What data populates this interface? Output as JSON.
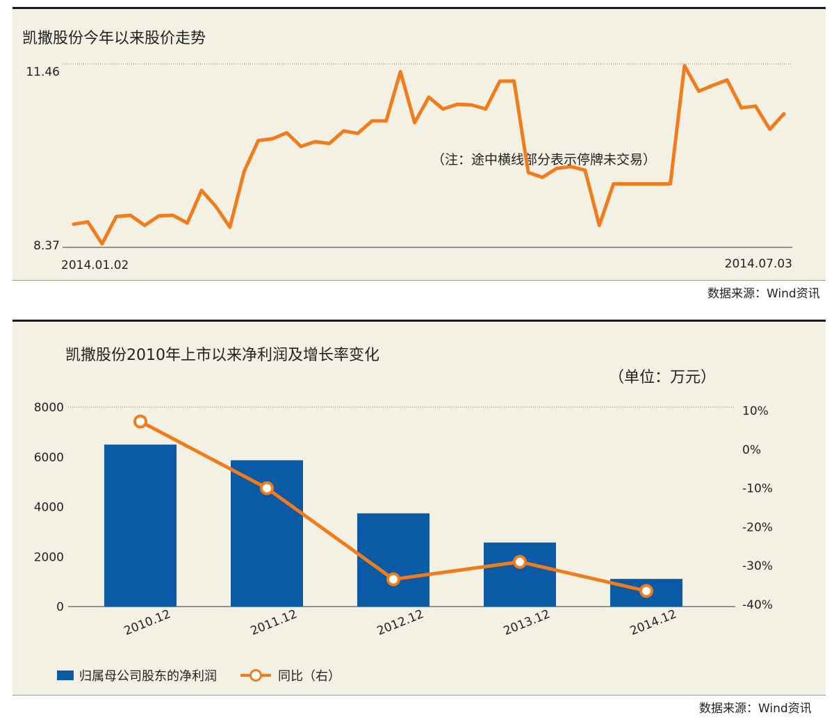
{
  "colors": {
    "orange": "#f07c1b",
    "blue": "#0a5aa5",
    "panel_bg": "#f3f0e4"
  },
  "panel1": {
    "title": "凯撒股份今年以来股价走势",
    "note": "（注：途中横线部分表示停牌未交易）",
    "source": "数据来源：Wind资讯"
  },
  "panel2": {
    "title": "凯撒股份2010年上市以来净利润及增长率变化",
    "unit": "（单位：万元）",
    "source": "数据来源：Wind资讯",
    "legend_bar": "归属母公司股东的净利润",
    "legend_line": "同比（右）"
  },
  "chart_data": [
    {
      "type": "line",
      "title": "凯撒股份今年以来股价走势",
      "ylim": [
        8.37,
        11.46
      ],
      "y_tick_labels": [
        "11.46",
        "8.37"
      ],
      "x_tick_labels": [
        "2014.01.02",
        "2014.07.03"
      ],
      "series": [
        {
          "values": [
            8.76,
            8.8,
            8.43,
            8.89,
            8.91,
            8.74,
            8.9,
            8.91,
            8.78,
            9.33,
            9.06,
            8.71,
            9.65,
            10.17,
            10.2,
            10.3,
            10.07,
            10.15,
            10.12,
            10.33,
            10.29,
            10.5,
            10.5,
            11.33,
            10.47,
            10.9,
            10.7,
            10.78,
            10.77,
            10.7,
            11.17,
            11.17,
            9.63,
            9.55,
            9.7,
            9.73,
            9.67,
            8.74,
            9.44,
            9.44,
            9.44,
            9.44,
            9.44,
            11.43,
            11.0,
            11.1,
            11.19,
            10.72,
            10.75,
            10.36,
            10.62
          ]
        }
      ]
    },
    {
      "type": "bar",
      "title": "凯撒股份2010年上市以来净利润及增长率变化",
      "categories": [
        "2010.12",
        "2011.12",
        "2012.12",
        "2013.12",
        "2014.12"
      ],
      "ylim": [
        0,
        8000
      ],
      "y_ticks": [
        0,
        2000,
        4000,
        6000,
        8000
      ],
      "y2lim": [
        -40,
        10
      ],
      "y2_tick_labels": [
        "10%",
        "0%",
        "-10%",
        "-20%",
        "-30%",
        "-40%"
      ],
      "series": [
        {
          "name": "归属母公司股东的净利润",
          "type": "bar",
          "axis": "left",
          "values": [
            6500,
            5870,
            3740,
            2570,
            1110
          ]
        },
        {
          "name": "同比（右）",
          "type": "line",
          "axis": "right",
          "values": [
            7.2,
            -10.0,
            -33.5,
            -29.0,
            -36.5
          ]
        }
      ]
    }
  ]
}
